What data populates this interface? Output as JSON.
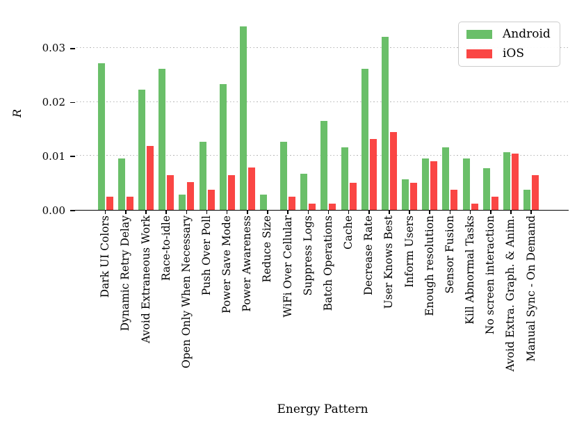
{
  "figure": {
    "background": "#ffffff"
  },
  "chart_data": {
    "type": "bar",
    "title": "",
    "xlabel": "Energy Pattern",
    "ylabel": "R",
    "ylim": [
      0,
      0.0364
    ],
    "yticks": [
      {
        "value": 0,
        "label": "0.00"
      },
      {
        "value": 0.01,
        "label": "0.01"
      },
      {
        "value": 0.02,
        "label": "0.02"
      },
      {
        "value": 0.03,
        "label": "0.03"
      }
    ],
    "grid": "horizontal-dotted",
    "grid_color": "#b4b4b4",
    "legend_position": "upper-right",
    "categories": [
      "Dark UI Colors",
      "Dynamic Retry Delay",
      "Avoid Extraneous Work",
      "Race-to-idle",
      "Open Only When Necessary",
      "Push Over Poll",
      "Power Save Mode",
      "Power Awareness",
      "Reduce Size",
      "WiFi Over Cellular",
      "Suppress Logs",
      "Batch Operations",
      "Cache",
      "Decrease Rate",
      "User Knows Best",
      "Inform Users",
      "Enough resolution",
      "Sensor Fusion",
      "Kill Abnormal Tasks",
      "No screen interaction",
      "Avoid Extra. Graph. & Anim.",
      "Manual Sync - On Demand"
    ],
    "series": [
      {
        "name": "Android",
        "color": "#6abf69",
        "values": [
          0.0273,
          0.0097,
          0.0224,
          0.0263,
          0.0029,
          0.0127,
          0.0234,
          0.0341,
          0.0029,
          0.0127,
          0.0068,
          0.0166,
          0.0117,
          0.0263,
          0.0322,
          0.0058,
          0.0097,
          0.0117,
          0.0097,
          0.0078,
          0.0108,
          0.0039
        ]
      },
      {
        "name": "iOS",
        "color": "#fa4644",
        "values": [
          0.0026,
          0.0026,
          0.012,
          0.0066,
          0.0053,
          0.0039,
          0.0066,
          0.008,
          0.0,
          0.0026,
          0.0013,
          0.0013,
          0.0052,
          0.0132,
          0.0145,
          0.0052,
          0.0092,
          0.0039,
          0.0013,
          0.0026,
          0.0106,
          0.0066
        ]
      }
    ]
  }
}
